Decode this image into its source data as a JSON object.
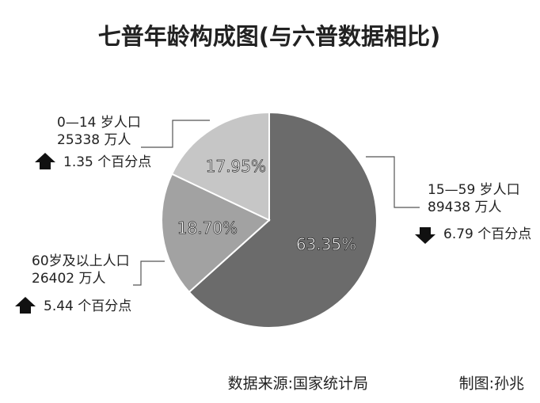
{
  "chart_data": {
    "type": "pie",
    "title": "七普年龄构成图(与六普数据相比)",
    "categories": [
      "15—59 岁人口",
      "60岁及以上人口",
      "0—14 岁人口"
    ],
    "values": [
      63.35,
      18.7,
      17.95
    ],
    "value_labels": [
      "63.35%",
      "18.70%",
      "17.95%"
    ],
    "colors": [
      "#6b6b6b",
      "#a2a2a2",
      "#c6c6c6"
    ],
    "population": [
      "89438 万人",
      "26402 万人",
      "25338 万人"
    ],
    "change": [
      "6.79 个百分点",
      "5.44 个百分点",
      "1.35 个百分点"
    ],
    "change_direction": [
      "down",
      "up",
      "up"
    ],
    "source": "数据来源:国家统计局",
    "credit": "制图:孙兆"
  }
}
